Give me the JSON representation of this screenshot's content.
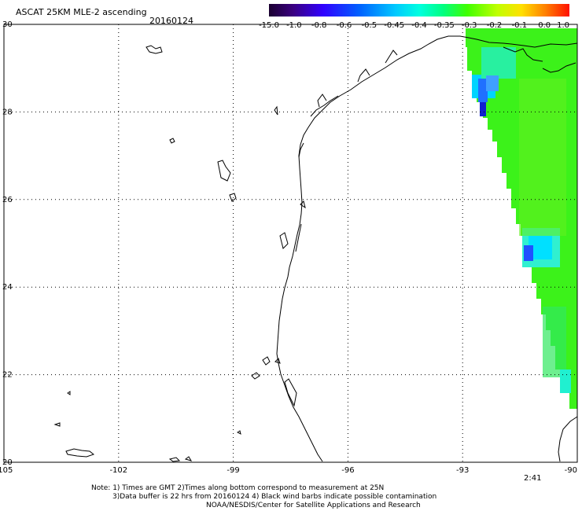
{
  "header": {
    "title": "ASCAT 25KM MLE-2 ascending",
    "date": "20160124"
  },
  "colorbar": {
    "labels": [
      "-15.0",
      "-1.0",
      "-0.8",
      "-0.6",
      "-0.5",
      "-0.45",
      "-0.4",
      "-0.35",
      "-0.3",
      "-0.2",
      "-0.1",
      "0.0",
      "1.0"
    ],
    "colors": [
      "#1a0030",
      "#2a0060",
      "#4b00a8",
      "#2400ff",
      "#0070ff",
      "#00b0ff",
      "#00e8ff",
      "#00ffc0",
      "#30ff40",
      "#90ff00",
      "#e0ff00",
      "#ffd000",
      "#ff8000",
      "#ff3000",
      "#ff1000"
    ]
  },
  "map": {
    "lat_labels": [
      "30",
      "28",
      "26",
      "24",
      "22",
      "20"
    ],
    "lon_labels": [
      "-105",
      "-102",
      "-99",
      "-96",
      "-93",
      "-90"
    ],
    "lat_range": [
      20,
      30
    ],
    "lon_range": [
      -105,
      -90
    ],
    "grid": true
  },
  "time_label": "2:41",
  "time_color": "#cc2200",
  "footer": {
    "line1": "Note: 1) Times are GMT 2)Times along bottom correspond to measurement at 25N",
    "line2": "3)Data buffer is 22 hrs from 20160124 4) Black wind barbs indicate possible contamination",
    "line3": "NOAA/NESDIS/Center for Satellite Applications and Research"
  }
}
